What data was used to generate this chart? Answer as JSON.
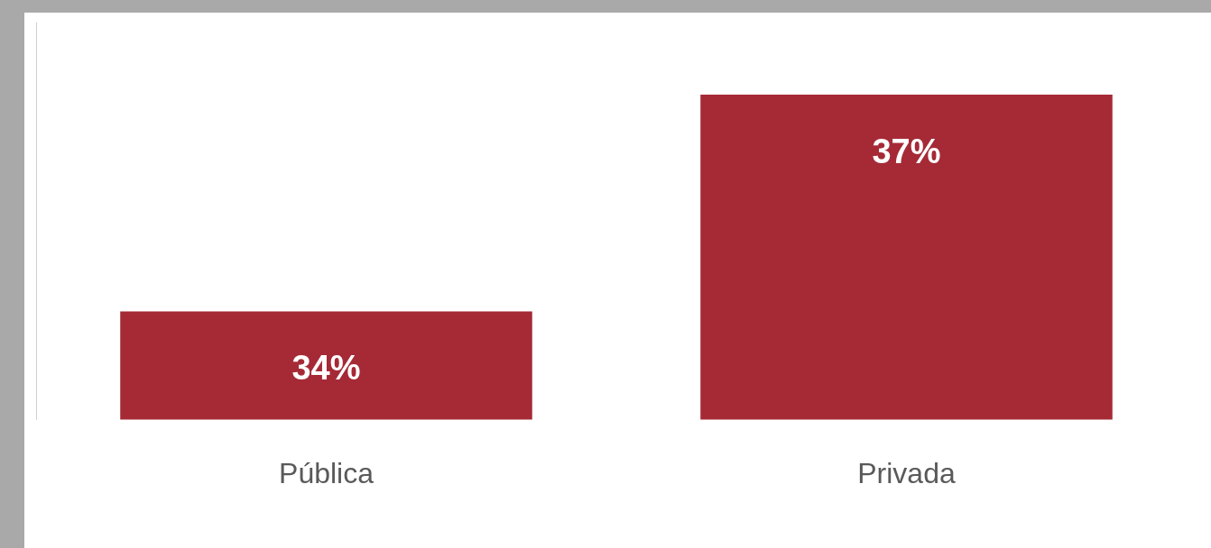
{
  "chart_data": {
    "type": "bar",
    "categories": [
      "Pública",
      "Privada"
    ],
    "series": [
      {
        "color": "#a52a36",
        "values": [
          34,
          37
        ],
        "value_labels": [
          "34%",
          "37%"
        ]
      }
    ],
    "ylim": [
      32.5,
      38
    ],
    "tick_labels": "x",
    "grid": false,
    "legend": false
  }
}
